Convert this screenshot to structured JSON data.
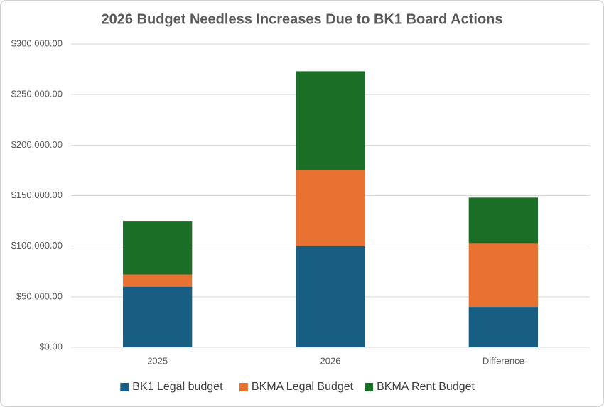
{
  "chart_data": {
    "type": "stacked_bar",
    "title": "2026  Budget Needless Increases Due to BK1 Board Actions",
    "categories": [
      "2025",
      "2026",
      "Difference"
    ],
    "series": [
      {
        "name": "BK1 Legal budget",
        "color": "#175e82",
        "values": [
          60000,
          100000,
          40000
        ]
      },
      {
        "name": "BKMA Legal Budget",
        "color": "#e97132",
        "values": [
          12000,
          75000,
          63000
        ]
      },
      {
        "name": "BKMA Rent Budget",
        "color": "#1b6e26",
        "values": [
          53000,
          98000,
          45000
        ]
      }
    ],
    "ylim": [
      0,
      300000
    ],
    "yticks": [
      {
        "value": 0,
        "label": "$0.00"
      },
      {
        "value": 50000,
        "label": "$50,000.00"
      },
      {
        "value": 100000,
        "label": "$100,000.00"
      },
      {
        "value": 150000,
        "label": "$150,000.00"
      },
      {
        "value": 200000,
        "label": "$200,000.00"
      },
      {
        "value": 250000,
        "label": "$250,000.00"
      },
      {
        "value": 300000,
        "label": "$300,000.00"
      }
    ],
    "grid": true,
    "legend": "bottom"
  }
}
